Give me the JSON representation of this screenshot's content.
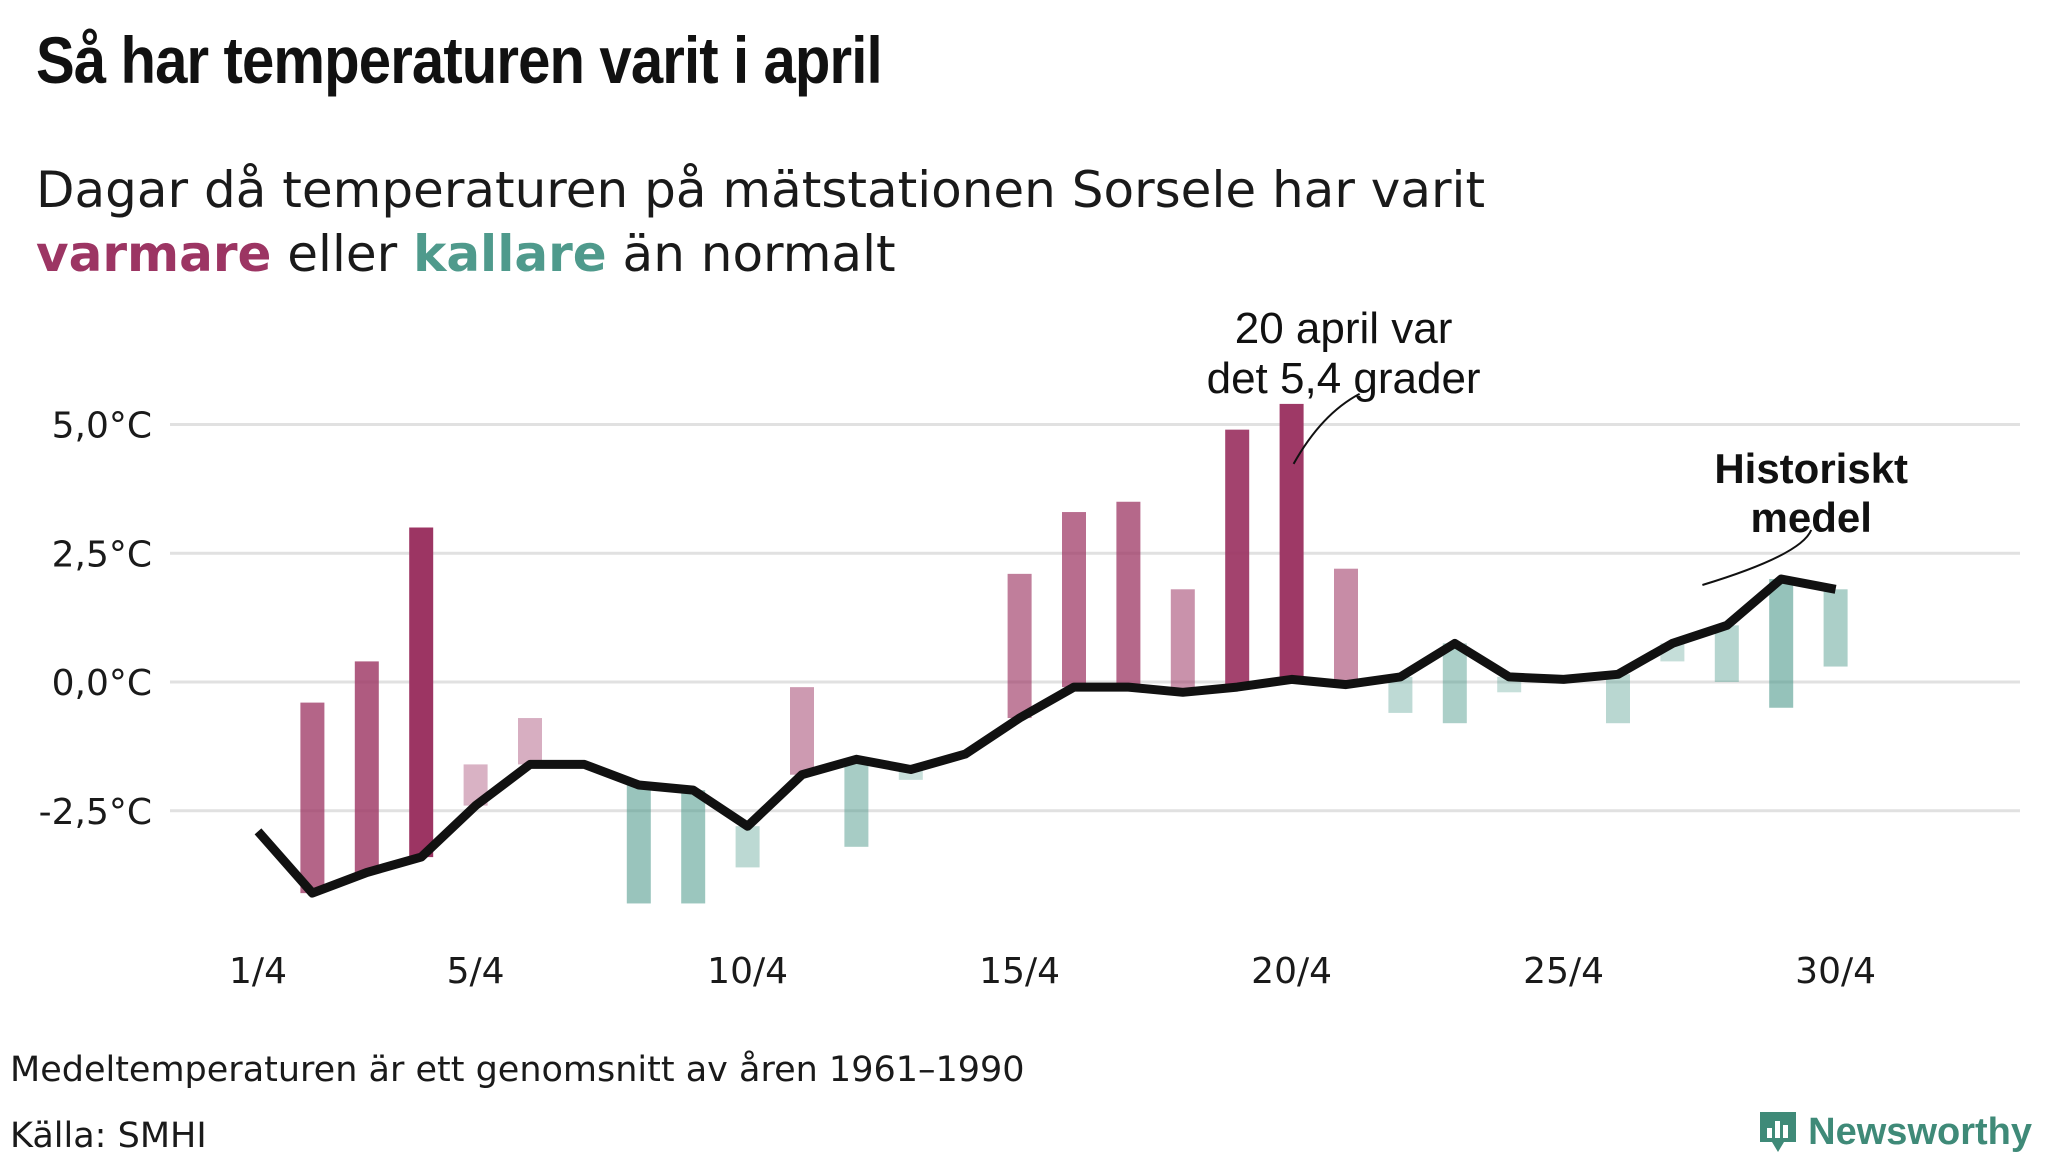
{
  "title": "Så har temperaturen varit i april",
  "subtitle": {
    "line1": "Dagar då temperaturen på mätstationen Sorsele har varit",
    "warm_word": "varmare",
    "between": " eller ",
    "cold_word": "kallare",
    "tail": " än normalt"
  },
  "colors": {
    "warm": "#9c3563",
    "cold": "#4f9a8c",
    "line": "#111111",
    "grid": "#e1e1e1"
  },
  "chart_data": {
    "type": "bar",
    "ylim": [
      -4.6,
      5.4
    ],
    "grid": true,
    "y_ticks": [
      {
        "value": 5,
        "label": "5,0°C"
      },
      {
        "value": 2.5,
        "label": "2,5°C"
      },
      {
        "value": 0,
        "label": "0,0°C"
      },
      {
        "value": -2.5,
        "label": "-2,5°C"
      }
    ],
    "x_ticks": [
      {
        "day": 1,
        "label": "1/4"
      },
      {
        "day": 5,
        "label": "5/4"
      },
      {
        "day": 10,
        "label": "10/4"
      },
      {
        "day": 15,
        "label": "15/4"
      },
      {
        "day": 20,
        "label": "20/4"
      },
      {
        "day": 25,
        "label": "25/4"
      },
      {
        "day": 30,
        "label": "30/4"
      }
    ],
    "days": [
      1,
      2,
      3,
      4,
      5,
      6,
      7,
      8,
      9,
      10,
      11,
      12,
      13,
      14,
      15,
      16,
      17,
      18,
      19,
      20,
      21,
      22,
      23,
      24,
      25,
      26,
      27,
      28,
      29,
      30
    ],
    "temperature": [
      null,
      -0.4,
      0.4,
      3.0,
      -1.6,
      -0.7,
      null,
      -4.3,
      -4.3,
      -3.6,
      -0.1,
      -3.2,
      -1.9,
      null,
      2.1,
      3.3,
      3.5,
      1.8,
      4.9,
      5.4,
      2.2,
      -0.6,
      -0.8,
      -0.2,
      null,
      -0.8,
      0.4,
      0.0,
      -0.5,
      0.3
    ],
    "historical_mean": [
      -2.9,
      -4.1,
      -3.7,
      -3.4,
      -2.4,
      -1.6,
      -1.6,
      -2.0,
      -2.1,
      -2.8,
      -1.8,
      -1.5,
      -1.7,
      -1.4,
      -0.7,
      -0.1,
      -0.1,
      -0.2,
      -0.1,
      0.05,
      -0.05,
      0.1,
      0.75,
      0.1,
      0.05,
      0.15,
      0.75,
      1.1,
      2.0,
      1.8
    ],
    "annotation_peak": [
      "20 april var",
      "det 5,4 grader"
    ],
    "annotation_mean": [
      "Historiskt",
      "medel"
    ]
  },
  "footer": {
    "note": "Medeltemperaturen är ett genomsnitt av åren 1961–1990",
    "source": "Källa: SMHI"
  },
  "logo": {
    "text": "Newsworthy",
    "icon": "newsworthy-chart-icon"
  }
}
